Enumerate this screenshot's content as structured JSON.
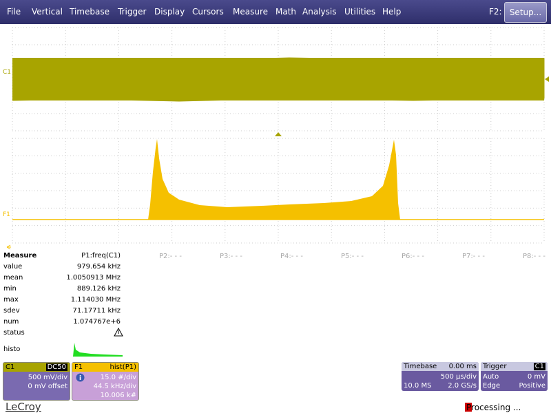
{
  "menu": {
    "items": [
      "File",
      "Vertical",
      "Timebase",
      "Trigger",
      "Display",
      "Cursors",
      "Measure",
      "Math",
      "Analysis",
      "Utilities",
      "Help"
    ],
    "shortcut": "F2:",
    "setup": "Setup..."
  },
  "traces": {
    "c1": "C1",
    "f1": "F1"
  },
  "measure": {
    "title": "Measure",
    "param": "P1:freq(C1)",
    "rows": [
      {
        "label": "value",
        "value": "979.654 kHz"
      },
      {
        "label": "mean",
        "value": "1.0050913 MHz"
      },
      {
        "label": "min",
        "value": "889.126 kHz"
      },
      {
        "label": "max",
        "value": "1.114030 MHz"
      },
      {
        "label": "sdev",
        "value": "71.17711 kHz"
      },
      {
        "label": "num",
        "value": "1.074767e+6"
      },
      {
        "label": "status",
        "value": ""
      }
    ],
    "histo": "histo",
    "others": [
      "P2:- - -",
      "P3:- - -",
      "P4:- - -",
      "P5:- - -",
      "P6:- - -",
      "P7:- - -",
      "P8:- - -"
    ]
  },
  "c1_box": {
    "name": "C1",
    "coupling": "DC50",
    "scale": "500 mV/div",
    "offset": "0 mV offset"
  },
  "f1_box": {
    "name": "F1",
    "func": "hist(P1)",
    "vscale": "15.0 #/div",
    "hscale": "44.5 kHz/div",
    "count": "10.006 k#"
  },
  "timebase": {
    "title": "Timebase",
    "delay": "0.00 ms",
    "scale": "500 µs/div",
    "samples": "10.0 MS",
    "rate": "2.0 GS/s"
  },
  "trigger": {
    "title": "Trigger",
    "source": "C1",
    "mode": "Auto",
    "level": "0 mV",
    "type": "Edge",
    "slope": "Positive"
  },
  "footer": {
    "brand": "LeCroy",
    "status": "Processing ..."
  }
}
